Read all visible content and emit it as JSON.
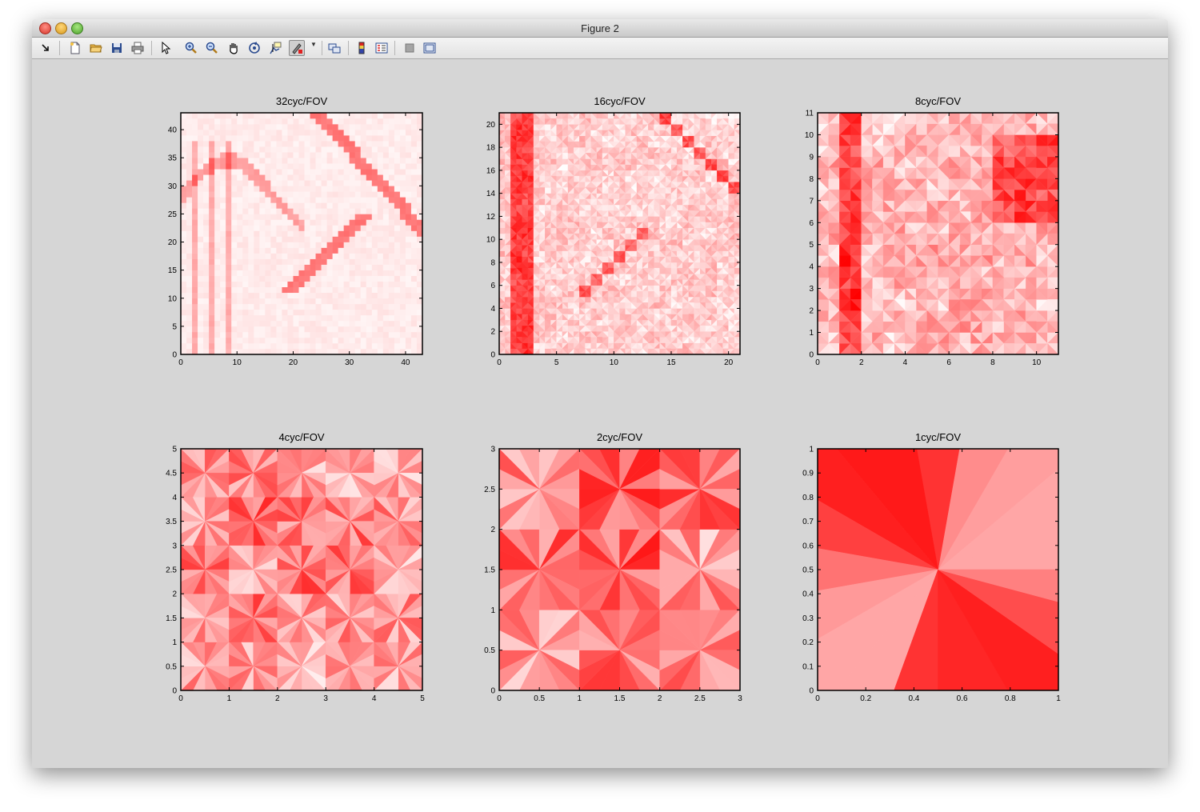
{
  "window": {
    "title": "Figure 2"
  },
  "toolbar": {
    "buttons": [
      {
        "name": "dock-button",
        "icon": "dock-arrow-icon"
      },
      {
        "name": "new-figure-button",
        "icon": "new-file-icon"
      },
      {
        "name": "open-file-button",
        "icon": "folder-open-icon"
      },
      {
        "name": "save-figure-button",
        "icon": "save-disk-icon"
      },
      {
        "name": "print-figure-button",
        "icon": "printer-icon"
      },
      {
        "name": "edit-plot-button",
        "icon": "pointer-arrow-icon"
      },
      {
        "name": "zoom-in-button",
        "icon": "zoom-in-icon"
      },
      {
        "name": "zoom-out-button",
        "icon": "zoom-out-icon"
      },
      {
        "name": "pan-button",
        "icon": "hand-pan-icon"
      },
      {
        "name": "rotate-3d-button",
        "icon": "rotate-3d-icon"
      },
      {
        "name": "data-cursor-button",
        "icon": "data-cursor-icon"
      },
      {
        "name": "brush-button",
        "icon": "brush-icon"
      },
      {
        "name": "link-plot-button",
        "icon": "link-plot-icon"
      },
      {
        "name": "insert-colorbar-button",
        "icon": "colorbar-icon"
      },
      {
        "name": "insert-legend-button",
        "icon": "legend-icon"
      },
      {
        "name": "hide-plot-tools-button",
        "icon": "hide-tools-icon"
      },
      {
        "name": "show-plot-tools-button",
        "icon": "show-tools-icon"
      }
    ]
  },
  "chart_data": [
    {
      "type": "heatmap",
      "title": "32cyc/FOV",
      "xlim": [
        0,
        43
      ],
      "ylim": [
        0,
        43
      ],
      "xticks": [
        "0",
        "10",
        "20",
        "30",
        "40"
      ],
      "yticks": [
        "0",
        "5",
        "10",
        "15",
        "20",
        "25",
        "30",
        "35",
        "40"
      ],
      "colormap": [
        "#ffffff",
        "#ff0000"
      ],
      "grid": false
    },
    {
      "type": "heatmap",
      "title": "16cyc/FOV",
      "xlim": [
        0,
        21
      ],
      "ylim": [
        0,
        21
      ],
      "xticks": [
        "0",
        "5",
        "10",
        "15",
        "20"
      ],
      "yticks": [
        "0",
        "2",
        "4",
        "6",
        "8",
        "10",
        "12",
        "14",
        "16",
        "18",
        "20"
      ],
      "colormap": [
        "#ffffff",
        "#ff0000"
      ],
      "grid": false
    },
    {
      "type": "heatmap",
      "title": "8cyc/FOV",
      "xlim": [
        0,
        11
      ],
      "ylim": [
        0,
        11
      ],
      "xticks": [
        "0",
        "2",
        "4",
        "6",
        "8",
        "10"
      ],
      "yticks": [
        "0",
        "1",
        "2",
        "3",
        "4",
        "5",
        "6",
        "7",
        "8",
        "9",
        "10",
        "11"
      ],
      "colormap": [
        "#ffffff",
        "#ff0000"
      ],
      "grid": false
    },
    {
      "type": "heatmap",
      "title": "4cyc/FOV",
      "xlim": [
        0,
        5
      ],
      "ylim": [
        0,
        5
      ],
      "xticks": [
        "0",
        "1",
        "2",
        "3",
        "4",
        "5"
      ],
      "yticks": [
        "0",
        "0.5",
        "1",
        "1.5",
        "2",
        "2.5",
        "3",
        "3.5",
        "4",
        "4.5",
        "5"
      ],
      "colormap": [
        "#ffffff",
        "#ff0000"
      ],
      "grid": false
    },
    {
      "type": "heatmap",
      "title": "2cyc/FOV",
      "xlim": [
        0,
        3
      ],
      "ylim": [
        0,
        3
      ],
      "xticks": [
        "0",
        "0.5",
        "1",
        "1.5",
        "2",
        "2.5",
        "3"
      ],
      "yticks": [
        "0",
        "0.5",
        "1",
        "1.5",
        "2",
        "2.5",
        "3"
      ],
      "colormap": [
        "#ffffff",
        "#ff0000"
      ],
      "grid": false
    },
    {
      "type": "heatmap",
      "title": "1cyc/FOV",
      "xlim": [
        0,
        1
      ],
      "ylim": [
        0,
        1
      ],
      "xticks": [
        "0",
        "0.2",
        "0.4",
        "0.6",
        "0.8",
        "1"
      ],
      "yticks": [
        "0",
        "0.1",
        "0.2",
        "0.3",
        "0.4",
        "0.5",
        "0.6",
        "0.7",
        "0.8",
        "0.9",
        "1"
      ],
      "colormap": [
        "#ffffff",
        "#ff0000"
      ],
      "grid": false,
      "sectors": [
        {
          "angle_start": 0,
          "angle_end": 20,
          "intensity": 0.35
        },
        {
          "angle_start": 20,
          "angle_end": 40,
          "intensity": 0.35
        },
        {
          "angle_start": 40,
          "angle_end": 60,
          "intensity": 0.38
        },
        {
          "angle_start": 60,
          "angle_end": 80,
          "intensity": 0.45
        },
        {
          "angle_start": 80,
          "angle_end": 100,
          "intensity": 0.8
        },
        {
          "angle_start": 100,
          "angle_end": 130,
          "intensity": 0.9
        },
        {
          "angle_start": 130,
          "angle_end": 150,
          "intensity": 0.88
        },
        {
          "angle_start": 150,
          "angle_end": 170,
          "intensity": 0.75
        },
        {
          "angle_start": 170,
          "angle_end": 190,
          "intensity": 0.55
        },
        {
          "angle_start": 190,
          "angle_end": 210,
          "intensity": 0.4
        },
        {
          "angle_start": 210,
          "angle_end": 230,
          "intensity": 0.35
        },
        {
          "angle_start": 230,
          "angle_end": 250,
          "intensity": 0.35
        },
        {
          "angle_start": 250,
          "angle_end": 270,
          "intensity": 0.8
        },
        {
          "angle_start": 270,
          "angle_end": 300,
          "intensity": 0.85
        },
        {
          "angle_start": 300,
          "angle_end": 325,
          "intensity": 0.88
        },
        {
          "angle_start": 325,
          "angle_end": 345,
          "intensity": 0.7
        },
        {
          "angle_start": 345,
          "angle_end": 360,
          "intensity": 0.5
        }
      ]
    }
  ]
}
